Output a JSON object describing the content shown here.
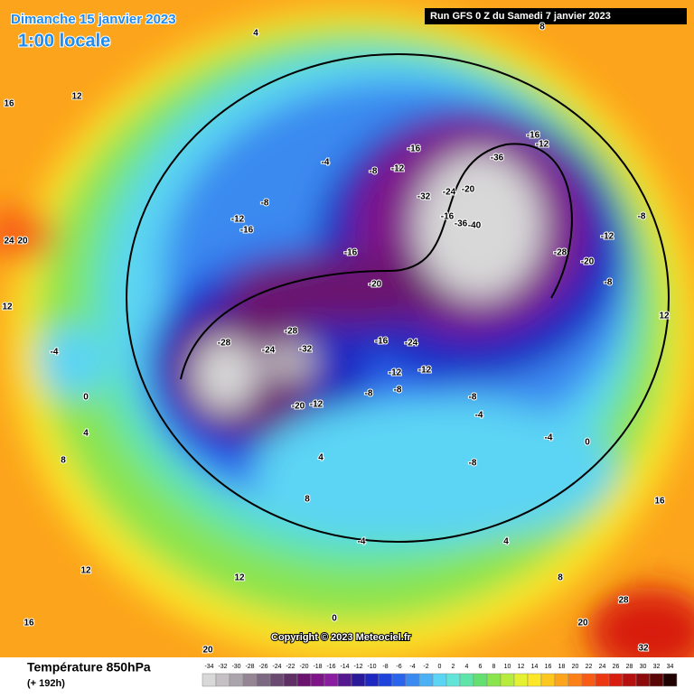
{
  "header": {
    "date": "Dimanche 15 janvier 2023",
    "time": "1:00 locale",
    "run": "Run GFS 0 Z du Samedi 7 janvier 2023"
  },
  "copyright": "Copyright © 2023 Meteociel.fr",
  "footer": {
    "title": "Température 850hPa",
    "lead": "(+ 192h)"
  },
  "legend": {
    "ticks": [
      -34,
      -32,
      -30,
      -28,
      -26,
      -24,
      -22,
      -20,
      -18,
      -16,
      -14,
      -12,
      -10,
      -8,
      -6,
      -4,
      -2,
      0,
      2,
      4,
      6,
      8,
      10,
      12,
      14,
      16,
      18,
      20,
      22,
      24,
      26,
      28,
      30,
      32,
      34
    ],
    "colors": [
      "#d8d8d8",
      "#c4c0c4",
      "#aca4ac",
      "#948494",
      "#7c6880",
      "#6a4a70",
      "#5e2e64",
      "#6a1470",
      "#7e1488",
      "#8a1ca0",
      "#561890",
      "#2a1a9a",
      "#1e28c0",
      "#1e44dc",
      "#2a64ec",
      "#3a8af0",
      "#4cb0f4",
      "#5cd4f4",
      "#62e4d8",
      "#5ee4a8",
      "#64e070",
      "#8ae44e",
      "#b8ec3c",
      "#e4f032",
      "#fce628",
      "#fcc820",
      "#fca41c",
      "#fc8018",
      "#f85c14",
      "#ec3812",
      "#d81e10",
      "#b41010",
      "#8c0a0a",
      "#5a0606",
      "#200202"
    ]
  },
  "map_labels": [
    "-16",
    "-12",
    "-8",
    "-20",
    "-16",
    "-24",
    "-16",
    "-12",
    "-12",
    "-8",
    "-8",
    "-8",
    "-4",
    "-8",
    "-4",
    "-4",
    "0",
    "4",
    "8",
    "12",
    "12",
    "16",
    "20",
    "16",
    "24",
    "20",
    "12",
    "-4",
    "-8",
    "-16",
    "-12",
    "-28",
    "-24",
    "-28",
    "-32",
    "-12",
    "-20",
    "-28",
    "-20",
    "-12",
    "-8",
    "-16",
    "-12",
    "-16",
    "-20",
    "-24",
    "-32",
    "-36",
    "-40",
    "-36",
    "-8",
    "12",
    "16",
    "20",
    "28",
    "32",
    "8",
    "4",
    "0",
    "-4",
    "0",
    "4",
    "8",
    "12",
    "4",
    "8"
  ]
}
